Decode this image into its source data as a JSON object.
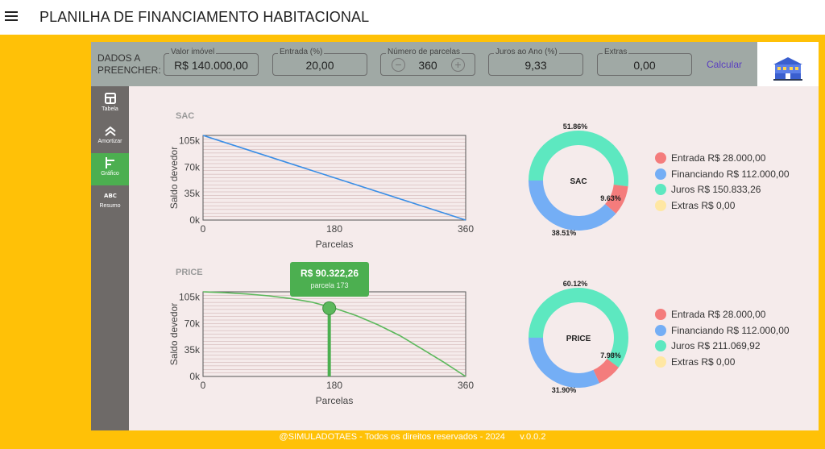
{
  "header": {
    "title": "PLANILHA DE FINANCIAMENTO HABITACIONAL",
    "menu_icon": "hamburger-menu-icon"
  },
  "inputs": {
    "label": "DADOS A PREENCHER:",
    "fields": [
      {
        "legend": "Valor imóvel",
        "value": "R$ 140.000,00"
      },
      {
        "legend": "Entrada (%)",
        "value": "20,00"
      },
      {
        "legend": "Número de parcelas",
        "value": "360"
      },
      {
        "legend": "Juros ao Ano (%)",
        "value": "9,33"
      },
      {
        "legend": "Extras",
        "value": "0,00"
      }
    ],
    "calc_label": "Calcular"
  },
  "sidebar": {
    "items": [
      {
        "label": "Tabela",
        "icon": "table-icon"
      },
      {
        "label": "Amortizar",
        "icon": "double-chevron-up-icon"
      },
      {
        "label": "Gráfico",
        "icon": "bar-chart-icon",
        "active": true
      },
      {
        "label": "Resumo",
        "icon": "abc-text-icon"
      }
    ]
  },
  "chart_data": [
    {
      "title": "SAC",
      "type": "line",
      "x": [
        0,
        180,
        360
      ],
      "series": [
        {
          "values": [
            112000,
            56000,
            0
          ]
        }
      ],
      "xlabel": "Parcelas",
      "ylabel": "Saldo devedor",
      "xticks": [
        "0",
        "180",
        "360"
      ],
      "yticks": [
        "0k",
        "35k",
        "70k",
        "105k"
      ],
      "xlim": [
        0,
        360
      ],
      "ylim": [
        0,
        112000
      ],
      "color": "#3a8ee6",
      "grid": true
    },
    {
      "title": "PRICE",
      "type": "line",
      "x": [
        0,
        30,
        60,
        90,
        120,
        150,
        180,
        210,
        240,
        270,
        300,
        330,
        360
      ],
      "series": [
        {
          "values": [
            112000,
            110800,
            109100,
            106700,
            103200,
            98100,
            90300,
            80500,
            68300,
            53900,
            36500,
            18900,
            0
          ]
        }
      ],
      "xlabel": "Parcelas",
      "ylabel": "Saldo devedor",
      "xticks": [
        "0",
        "180",
        "360"
      ],
      "yticks": [
        "0k",
        "35k",
        "70k",
        "105k"
      ],
      "xlim": [
        0,
        360
      ],
      "ylim": [
        0,
        112000
      ],
      "color": "#5cb85c",
      "grid": true,
      "tooltip": {
        "value": "R$ 90.322,26",
        "sub": "parcela 173",
        "x": 173,
        "y": 90322.26
      }
    },
    {
      "title": "SAC",
      "type": "pie",
      "slices": [
        {
          "label": "Entrada",
          "value": 9.63,
          "text": "9.63%",
          "color": "#f47c7c"
        },
        {
          "label": "Financiando",
          "value": 38.51,
          "text": "38.51%",
          "color": "#74aef5"
        },
        {
          "label": "Juros",
          "value": 51.86,
          "text": "51.86%",
          "color": "#5de8c0"
        },
        {
          "label": "Extras",
          "value": 0,
          "text": "",
          "color": "#ffe7a3"
        }
      ],
      "legend": [
        "Entrada R$ 28.000,00",
        "Financiando R$ 112.000,00",
        "Juros R$ 150.833,26",
        "Extras R$ 0,00"
      ]
    },
    {
      "title": "PRICE",
      "type": "pie",
      "slices": [
        {
          "label": "Entrada",
          "value": 7.98,
          "text": "7.98%",
          "color": "#f47c7c"
        },
        {
          "label": "Financiando",
          "value": 31.9,
          "text": "31.90%",
          "color": "#74aef5"
        },
        {
          "label": "Juros",
          "value": 60.12,
          "text": "60.12%",
          "color": "#5de8c0"
        },
        {
          "label": "Extras",
          "value": 0,
          "text": "",
          "color": "#ffe7a3"
        }
      ],
      "legend": [
        "Entrada R$ 28.000,00",
        "Financiando R$ 112.000,00",
        "Juros R$ 211.069,92",
        "Extras R$ 0,00"
      ]
    }
  ],
  "footer": {
    "copyright": "@SIMULADOTAES - Todos os direitos reservados - 2024",
    "version": "v.0.0.2"
  }
}
